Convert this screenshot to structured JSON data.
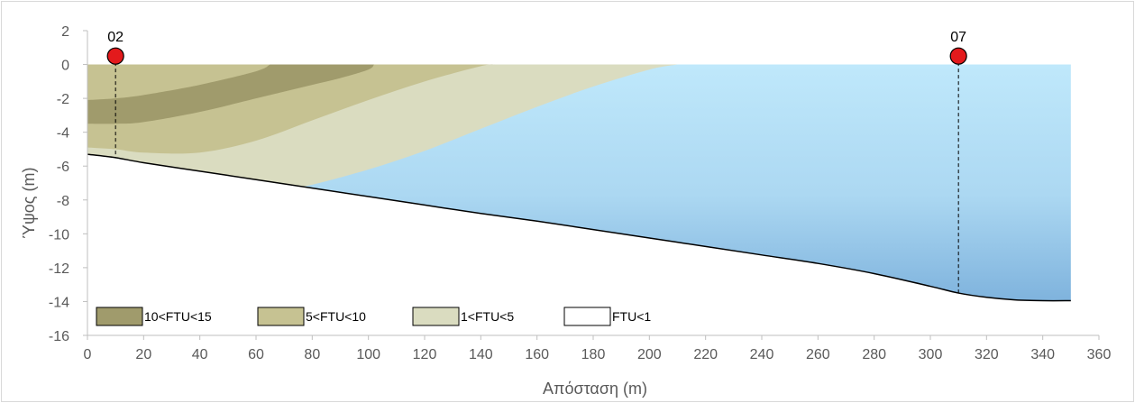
{
  "chart_data": {
    "type": "area",
    "xlabel": "Απόσταση (m)",
    "ylabel": "Ύψος (m)",
    "xlim": [
      0,
      360
    ],
    "ylim": [
      -16,
      2
    ],
    "xticks": [
      0,
      20,
      40,
      60,
      80,
      100,
      120,
      140,
      160,
      180,
      200,
      220,
      240,
      260,
      280,
      300,
      320,
      340,
      360
    ],
    "yticks": [
      2,
      0,
      -2,
      -4,
      -6,
      -8,
      -10,
      -12,
      -14,
      -16
    ],
    "grid": false,
    "legend_placement": "bottom-left",
    "bed_profile": {
      "x": [
        0,
        10,
        20,
        40,
        60,
        80,
        100,
        120,
        140,
        160,
        180,
        200,
        220,
        240,
        260,
        280,
        300,
        310,
        320,
        330,
        340,
        350
      ],
      "y": [
        -5.3,
        -5.5,
        -5.8,
        -6.3,
        -6.8,
        -7.3,
        -7.8,
        -8.3,
        -8.8,
        -9.25,
        -9.75,
        -10.25,
        -10.75,
        -11.25,
        -11.75,
        -12.35,
        -13.1,
        -13.5,
        -13.75,
        -13.9,
        -13.95,
        -13.95
      ]
    },
    "water_surface": 0,
    "series": [
      {
        "name": "10<FTU<15",
        "color": "#a09b6c",
        "boundary": {
          "x": [
            0,
            10,
            20,
            40,
            60,
            70,
            80,
            90,
            100,
            102
          ],
          "y": [
            -3.5,
            -3.5,
            -3.4,
            -2.8,
            -2.0,
            -1.6,
            -1.2,
            -0.8,
            -0.3,
            0
          ]
        },
        "top_boundary": {
          "x": [
            0,
            10,
            20,
            40,
            60,
            65
          ],
          "y": [
            -2.1,
            -2.0,
            -1.8,
            -1.2,
            -0.4,
            0
          ]
        }
      },
      {
        "name": "5<FTU<10",
        "color": "#c6c292",
        "boundary": {
          "x": [
            0,
            10,
            20,
            40,
            60,
            80,
            100,
            120,
            140,
            145
          ],
          "y": [
            -4.9,
            -5.0,
            -5.2,
            -5.2,
            -4.5,
            -3.3,
            -2.1,
            -1.0,
            -0.1,
            0
          ]
        }
      },
      {
        "name": "1<FTU<5",
        "color": "#dadcc0",
        "boundary": {
          "x": [
            75,
            80,
            100,
            120,
            140,
            160,
            180,
            200,
            210
          ],
          "y": [
            -7.2,
            -7.1,
            -6.2,
            -5.1,
            -3.8,
            -2.5,
            -1.3,
            -0.3,
            0
          ]
        }
      },
      {
        "name": "FTU<1",
        "color": "#bfe8fb"
      }
    ],
    "stations": [
      {
        "label": "02",
        "x": 10,
        "y": 0.5,
        "color": "#e31a1c"
      },
      {
        "label": "07",
        "x": 310,
        "y": 0.5,
        "color": "#e31a1c"
      }
    ]
  }
}
